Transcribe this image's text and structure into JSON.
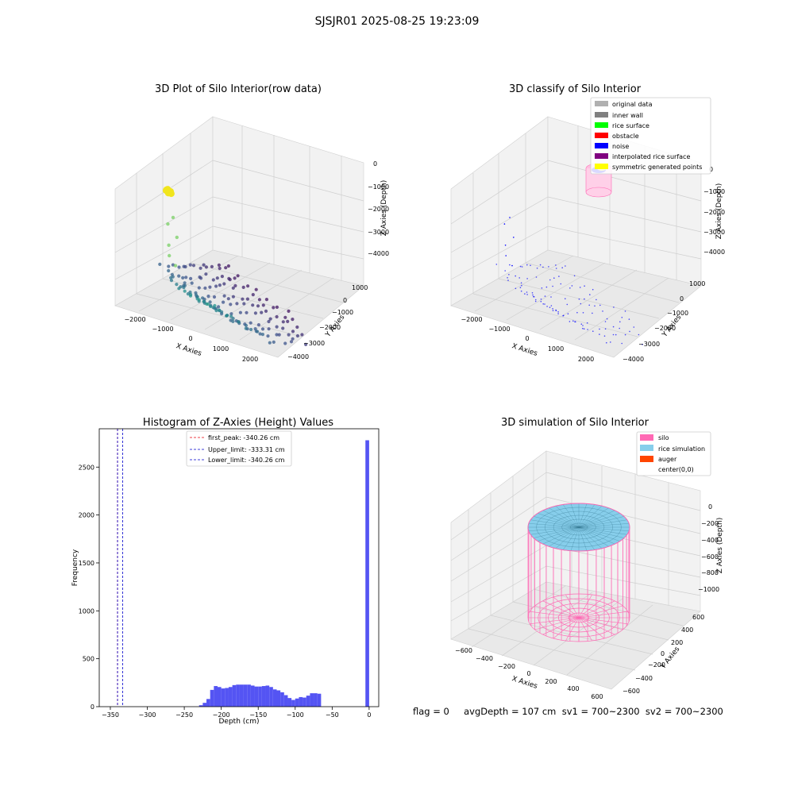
{
  "suptitle": "SJSJR01 2025-08-25 19:23:09",
  "status_line": "flag = 0     avgDepth = 107 cm  sv1 = 700~2300  sv2 = 700~2300",
  "colors": {
    "blue_hist": "#4b4bf2",
    "red_line": "#e8000b",
    "blue_line": "#0000cc",
    "silo": "#ff69b4",
    "rice_sim": "#87ceeb",
    "auger": "#ff4500",
    "yellow": "#f1e51d",
    "viridis_green": "#35b779",
    "viridis_teal": "#21918c",
    "viridis_navy": "#31688e",
    "viridis_purple": "#440154"
  },
  "chart_data": [
    {
      "type": "scatter",
      "title": "3D Plot of Silo Interior(row data)",
      "projection": "3d",
      "xlabel": "X Axies",
      "ylabel": "Y Axies",
      "zlabel": "Z Axies (Depth)",
      "x_ticks": [
        "−2000",
        "−1000",
        "0",
        "1000",
        "2000"
      ],
      "y_ticks": [
        "1000",
        "0",
        "−1000",
        "−2000",
        "−3000",
        "−4000"
      ],
      "z_ticks": [
        "0",
        "−1000",
        "−2000",
        "−3000",
        "−4000"
      ],
      "xlim": [
        -2400,
        2400
      ],
      "ylim": [
        -4300,
        1500
      ],
      "zlim": [
        -4500,
        300
      ],
      "colormap": "viridis",
      "note": "point cloud sampled by the drawing script; the point coordinates below are representative samples, not exact readings",
      "series": [
        {
          "points": [
            [
              -100,
              900,
              0
            ],
            [
              -40,
              1050,
              -80
            ],
            [
              40,
              950,
              -30
            ],
            [
              0,
              1000,
              -150
            ],
            [
              -60,
              850,
              -60
            ],
            [
              60,
              1100,
              -20
            ],
            [
              20,
              900,
              -100
            ],
            [
              -20,
              1050,
              -40
            ]
          ]
        },
        {
          "points": [
            [
              -500,
              200,
              -900
            ],
            [
              -700,
              -200,
              -1600
            ],
            [
              -900,
              -100,
              -2100
            ],
            [
              -600,
              300,
              -1300
            ],
            [
              -800,
              0,
              -2600
            ],
            [
              -500,
              100,
              -3000
            ]
          ]
        }
      ],
      "cloud_rows": [
        {
          "y": 1200,
          "xmin": 0,
          "xmax": 2300,
          "z": -3550
        },
        {
          "y": 700,
          "xmin": -300,
          "xmax": 2300,
          "z": -3700
        },
        {
          "y": 200,
          "xmin": -600,
          "xmax": 2300,
          "z": -3800
        },
        {
          "y": -300,
          "xmin": -900,
          "xmax": 2300,
          "z": -3900
        },
        {
          "y": -800,
          "xmin": -1200,
          "xmax": 2300,
          "z": -3950
        },
        {
          "y": -1300,
          "xmin": -1500,
          "xmax": 2300,
          "z": -4000
        },
        {
          "y": -1800,
          "xmin": -1800,
          "xmax": 2100,
          "z": -4000
        },
        {
          "y": -2300,
          "xmin": -2000,
          "xmax": 1800,
          "z": -4000
        },
        {
          "y": -2800,
          "xmin": -2100,
          "xmax": 1500,
          "z": -3950
        },
        {
          "y": -3300,
          "xmin": -2200,
          "xmax": 1100,
          "z": -3900
        }
      ]
    },
    {
      "type": "scatter",
      "title": "3D classify of Silo Interior",
      "projection": "3d",
      "xlabel": "X Axies",
      "ylabel": "Y Axies",
      "zlabel": "Z Axies (Depth)",
      "x_ticks": [
        "−2000",
        "−1000",
        "0",
        "1000",
        "2000"
      ],
      "y_ticks": [
        "1000",
        "0",
        "−1000",
        "−2000",
        "−3000",
        "−4000"
      ],
      "z_ticks": [
        "0",
        "−1000",
        "−2000",
        "−3000",
        "−4000"
      ],
      "legend": {
        "placement": "top-right",
        "entries": [
          {
            "label": "original data",
            "color": "#b0b0b0"
          },
          {
            "label": "inner wall",
            "color": "#808080"
          },
          {
            "label": "rice surface",
            "color": "#00ff00"
          },
          {
            "label": "obstacle",
            "color": "#ff0000"
          },
          {
            "label": "noise",
            "color": "#0000ff"
          },
          {
            "label": "interpolated rice surface",
            "color": "#800080"
          },
          {
            "label": "symmetric generated points",
            "color": "#ffff00"
          }
        ]
      }
    },
    {
      "type": "bar",
      "title": "Histogram of Z-Axies (Height) Values",
      "xlabel": "Depth (cm)",
      "ylabel": "Frequency",
      "xlim": [
        -365,
        13
      ],
      "ylim": [
        0,
        2900
      ],
      "x_ticks": [
        -350,
        -300,
        -250,
        -200,
        -150,
        -100,
        -50,
        0
      ],
      "x_tick_labels": [
        "−350",
        "−300",
        "−250",
        "−200",
        "−150",
        "−100",
        "−50",
        "0"
      ],
      "y_ticks": [
        0,
        500,
        1000,
        1500,
        2000,
        2500
      ],
      "bin_width": 5,
      "bins": [
        {
          "x0": -230,
          "count": 15
        },
        {
          "x0": -225,
          "count": 40
        },
        {
          "x0": -220,
          "count": 80
        },
        {
          "x0": -215,
          "count": 175
        },
        {
          "x0": -210,
          "count": 215
        },
        {
          "x0": -205,
          "count": 205
        },
        {
          "x0": -200,
          "count": 190
        },
        {
          "x0": -195,
          "count": 195
        },
        {
          "x0": -190,
          "count": 205
        },
        {
          "x0": -185,
          "count": 225
        },
        {
          "x0": -180,
          "count": 230
        },
        {
          "x0": -175,
          "count": 230
        },
        {
          "x0": -170,
          "count": 230
        },
        {
          "x0": -165,
          "count": 230
        },
        {
          "x0": -160,
          "count": 220
        },
        {
          "x0": -155,
          "count": 210
        },
        {
          "x0": -150,
          "count": 210
        },
        {
          "x0": -145,
          "count": 215
        },
        {
          "x0": -140,
          "count": 220
        },
        {
          "x0": -135,
          "count": 205
        },
        {
          "x0": -130,
          "count": 180
        },
        {
          "x0": -125,
          "count": 170
        },
        {
          "x0": -120,
          "count": 150
        },
        {
          "x0": -115,
          "count": 120
        },
        {
          "x0": -110,
          "count": 90
        },
        {
          "x0": -105,
          "count": 70
        },
        {
          "x0": -100,
          "count": 85
        },
        {
          "x0": -95,
          "count": 100
        },
        {
          "x0": -90,
          "count": 95
        },
        {
          "x0": -85,
          "count": 115
        },
        {
          "x0": -80,
          "count": 140
        },
        {
          "x0": -75,
          "count": 140
        },
        {
          "x0": -70,
          "count": 135
        },
        {
          "x0": -65,
          "count": 2780
        }
      ],
      "vlines": [
        {
          "label": "first_peak: -340.26 cm",
          "x": -340.26,
          "color": "#e8000b",
          "style": "dashed"
        },
        {
          "label": "Upper_limit: -333.31 cm",
          "x": -333.31,
          "color": "#0000cc",
          "style": "dashed"
        },
        {
          "label": "Lower_limit: -340.26 cm",
          "x": -340.26,
          "color": "#0000cc",
          "style": "dashed"
        }
      ],
      "legend": {
        "placement": "top-center"
      }
    },
    {
      "type": "area",
      "title": "3D simulation of Silo Interior",
      "projection": "3d",
      "xlabel": "X Axies",
      "ylabel": "Y Axies",
      "zlabel": "Z Axies (Depth)",
      "x_ticks": [
        "−600",
        "−400",
        "−200",
        "0",
        "200",
        "400",
        "600"
      ],
      "y_ticks": [
        "600",
        "400",
        "200",
        "0",
        "−200",
        "−400",
        "−600"
      ],
      "z_ticks": [
        "0",
        "−200",
        "−400",
        "−600",
        "−800",
        "−1000"
      ],
      "legend": {
        "placement": "top-right",
        "entries": [
          {
            "label": "silo",
            "color": "#ff69b4"
          },
          {
            "label": "rice simulation",
            "color": "#87ceeb"
          },
          {
            "label": "auger",
            "color": "#ff4500"
          },
          {
            "label": "center(0,0)",
            "color": "#ffffff"
          }
        ]
      }
    }
  ]
}
